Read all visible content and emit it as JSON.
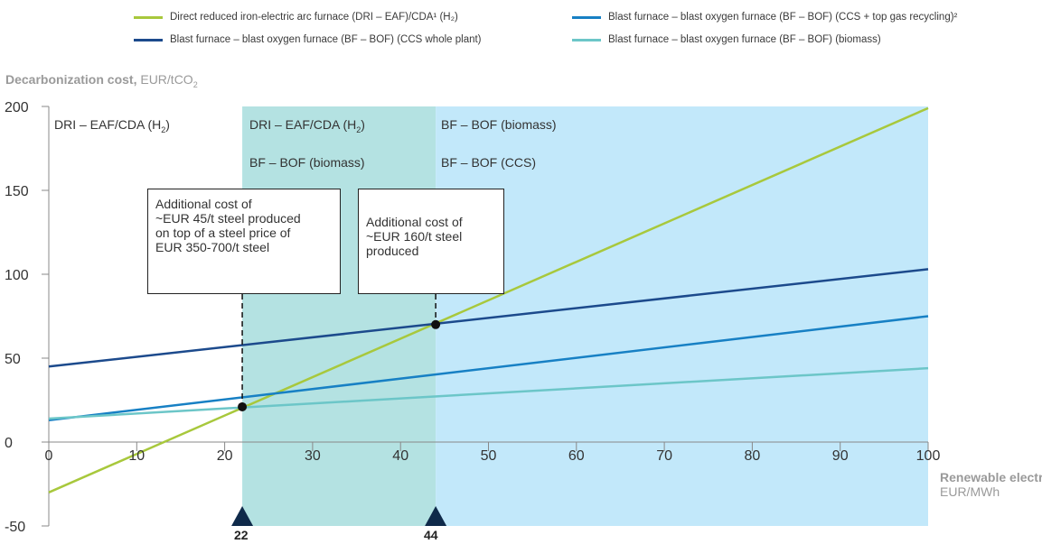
{
  "chart_data": {
    "type": "line",
    "ylabel": "Decarbonization cost,",
    "ylabel_unit": "EUR/tCO",
    "ylabel_unit_sub": "2",
    "xlabel": "Renewable electricity,",
    "xlabel_unit": "EUR/MWh",
    "xlim": [
      0,
      100
    ],
    "ylim": [
      -50,
      200
    ],
    "x_ticks": [
      0,
      10,
      20,
      30,
      40,
      50,
      60,
      70,
      80,
      90,
      100
    ],
    "y_ticks": [
      -50,
      0,
      50,
      100,
      150,
      200
    ],
    "series": [
      {
        "name": "Direct reduced iron-electric arc furnace (DRI – EAF)/CDA¹ (H₂)",
        "color": "#a8c83c",
        "x": [
          0,
          100
        ],
        "y": [
          -30,
          199
        ]
      },
      {
        "name": "Blast furnace – blast oxygen furnace (BF – BOF) (CCS + top gas recycling)²",
        "color": "#1780c4",
        "x": [
          0,
          100
        ],
        "y": [
          13,
          75
        ]
      },
      {
        "name": "Blast furnace – blast oxygen furnace (BF – BOF) (CCS whole plant)",
        "color": "#1c4a8c",
        "x": [
          0,
          100
        ],
        "y": [
          45,
          103
        ]
      },
      {
        "name": "Blast furnace – blast oxygen furnace (BF – BOF) (biomass)",
        "color": "#6cc6c8",
        "x": [
          0,
          100
        ],
        "y": [
          14,
          44
        ]
      }
    ],
    "regions": [
      {
        "x_from": 22,
        "x_to": 44,
        "color": "#b4e2e2",
        "labels": [
          "DRI – EAF/CDA (H",
          "BF – BOF (biomass)"
        ]
      },
      {
        "x_from": 44,
        "x_to": 100,
        "color": "#c2e8fa",
        "labels": [
          "BF – BOF (biomass)",
          "BF – BOF (CCS)"
        ]
      },
      {
        "x_from": 0,
        "x_to": 22,
        "labels": [
          "DRI – EAF/CDA (H"
        ]
      }
    ],
    "markers": [
      {
        "x": 22,
        "y": 21,
        "label": "22"
      },
      {
        "x": 44,
        "y": 70,
        "label": "44"
      }
    ],
    "annotations": [
      {
        "lines": [
          "Additional cost of",
          "~EUR 45/t steel produced",
          "on top of a steel price of",
          "EUR 350-700/t steel"
        ]
      },
      {
        "lines": [
          "Additional cost of",
          "~EUR 160/t steel",
          "produced"
        ]
      }
    ],
    "subscript_h2": "2",
    "close_paren": ")"
  }
}
